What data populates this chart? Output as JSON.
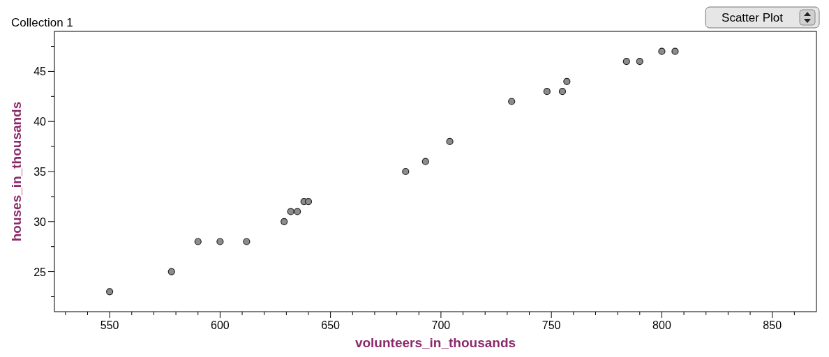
{
  "chart_data": {
    "type": "scatter",
    "title": "Collection 1",
    "xlabel": "volunteers_in_thousands",
    "ylabel": "houses_in_thousands",
    "annotations": [
      "Scatter Plot"
    ],
    "x": [
      550,
      578,
      590,
      600,
      612,
      629,
      632,
      635,
      638,
      640,
      684,
      693,
      704,
      732,
      748,
      755,
      757,
      784,
      790,
      800,
      806
    ],
    "series": [
      {
        "color": "#8c8c8c",
        "values": [
          23,
          25,
          28,
          28,
          28,
          30,
          31,
          31,
          32,
          32,
          35,
          36,
          38,
          42,
          43,
          43,
          44,
          46,
          46,
          47,
          47
        ]
      }
    ],
    "xlim": [
      525,
      870
    ],
    "ylim": [
      21,
      49
    ],
    "xticks": [
      {
        "value": 530,
        "label": null
      },
      {
        "value": 540,
        "label": null
      },
      550,
      {
        "value": 560,
        "label": null
      },
      {
        "value": 570,
        "label": null
      },
      {
        "value": 580,
        "label": null
      },
      {
        "value": 590,
        "label": null
      },
      600,
      {
        "value": 610,
        "label": null
      },
      {
        "value": 620,
        "label": null
      },
      {
        "value": 630,
        "label": null
      },
      {
        "value": 640,
        "label": null
      },
      650,
      {
        "value": 660,
        "label": null
      },
      {
        "value": 670,
        "label": null
      },
      {
        "value": 680,
        "label": null
      },
      {
        "value": 690,
        "label": null
      },
      700,
      {
        "value": 710,
        "label": null
      },
      {
        "value": 720,
        "label": null
      },
      {
        "value": 730,
        "label": null
      },
      {
        "value": 740,
        "label": null
      },
      750,
      {
        "value": 760,
        "label": null
      },
      {
        "value": 770,
        "label": null
      },
      {
        "value": 780,
        "label": null
      },
      {
        "value": 790,
        "label": null
      },
      800,
      {
        "value": 810,
        "label": null
      },
      {
        "value": 820,
        "label": null
      },
      {
        "value": 830,
        "label": null
      },
      {
        "value": 840,
        "label": null
      },
      850,
      {
        "value": 860,
        "label": null
      }
    ],
    "yticks": [
      {
        "value": 22.5,
        "label": null
      },
      25,
      {
        "value": 27.5,
        "label": null
      },
      30,
      {
        "value": 32.5,
        "label": null
      },
      35,
      {
        "value": 37.5,
        "label": null
      },
      40,
      {
        "value": 42.5,
        "label": null
      },
      45,
      {
        "value": 47.5,
        "label": null
      }
    ],
    "grid": false,
    "marker": "circle"
  }
}
